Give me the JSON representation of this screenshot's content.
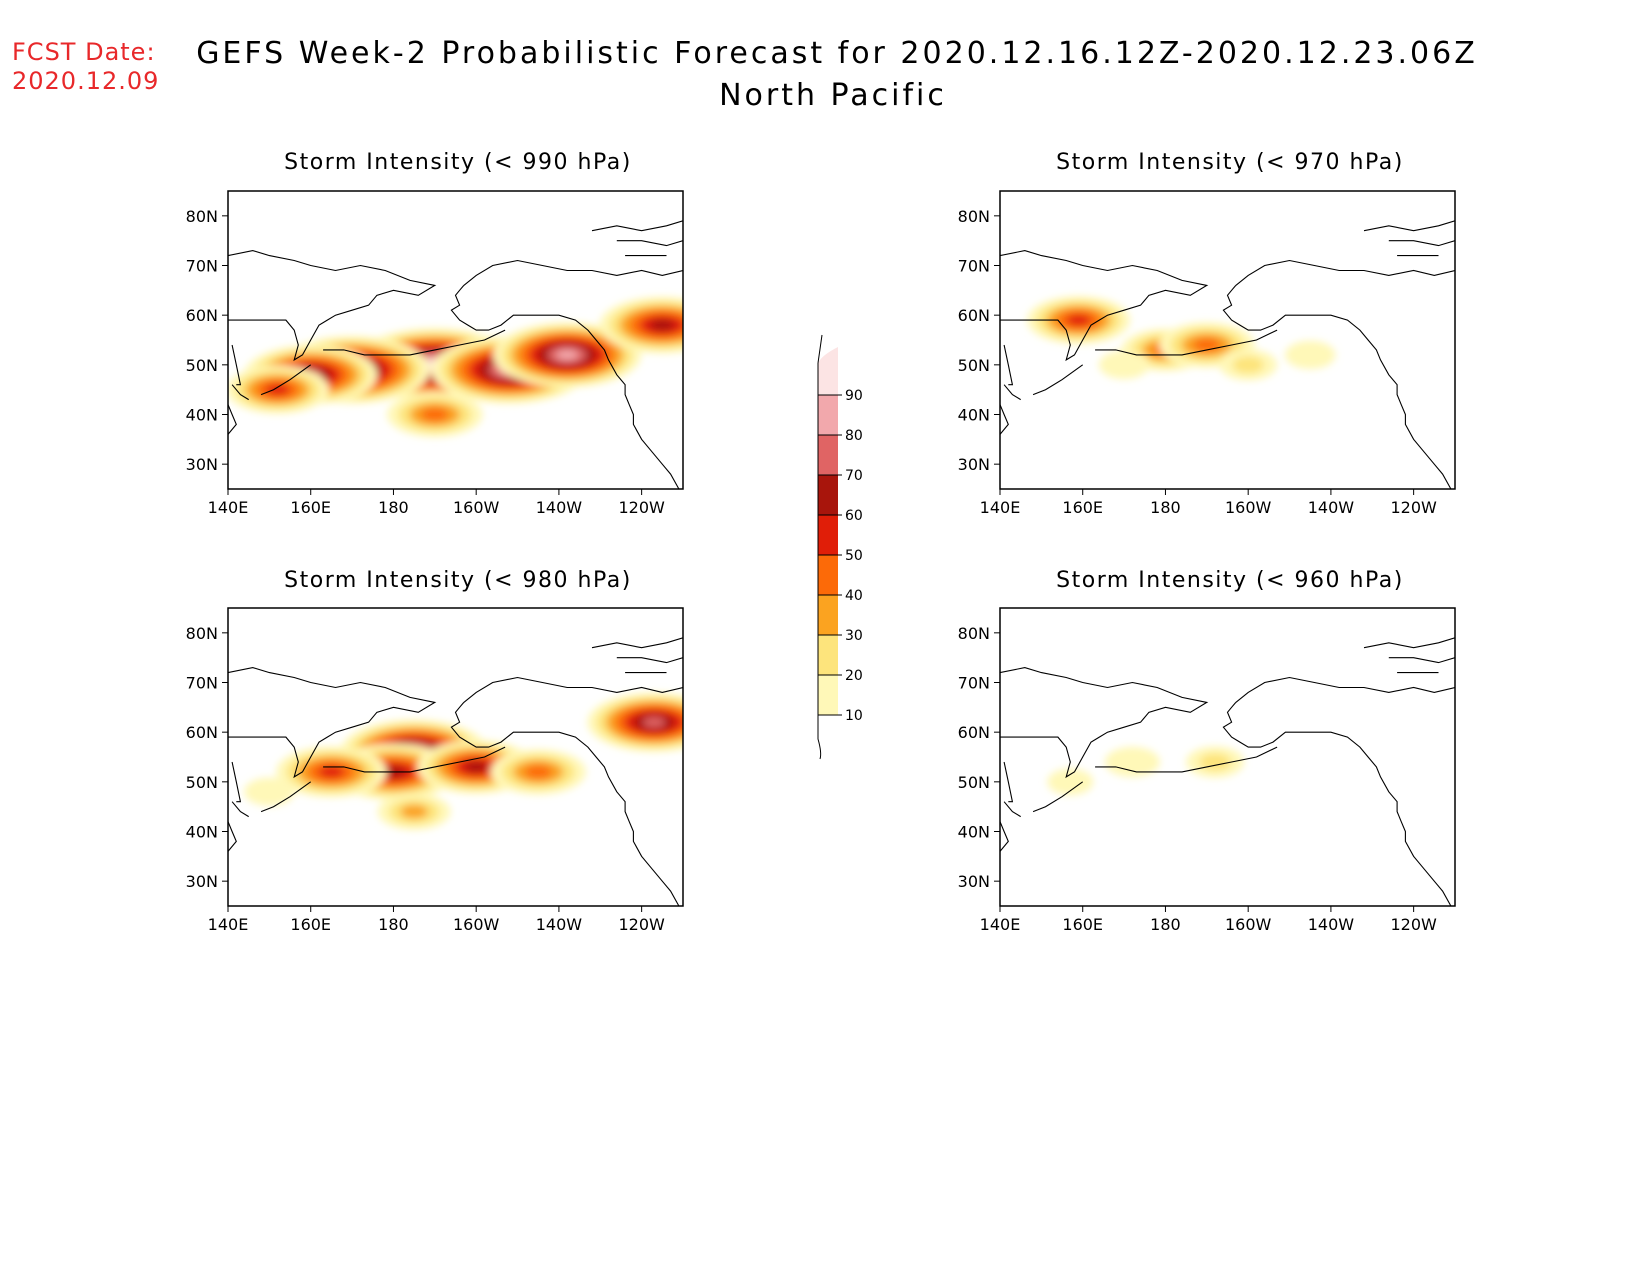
{
  "fcst_date": {
    "label": "FCST Date:",
    "value": "2020.12.09"
  },
  "title": "GEFS Week-2 Probabilistic Forecast for 2020.12.16.12Z-2020.12.23.06Z",
  "subtitle": "North Pacific",
  "axes": {
    "lon_ticks": [
      "140E",
      "160E",
      "180",
      "160W",
      "140W",
      "120W"
    ],
    "lat_ticks": [
      "80N",
      "70N",
      "60N",
      "50N",
      "40N",
      "30N"
    ]
  },
  "panels": [
    {
      "id": "p990",
      "title": "Storm Intensity (< 990 hPa)"
    },
    {
      "id": "p970",
      "title": "Storm Intensity (< 970 hPa)"
    },
    {
      "id": "p980",
      "title": "Storm Intensity (< 980 hPa)"
    },
    {
      "id": "p960",
      "title": "Storm Intensity (< 960 hPa)"
    }
  ],
  "colorbar": {
    "levels": [
      "10",
      "20",
      "30",
      "40",
      "50",
      "60",
      "70",
      "80",
      "90"
    ],
    "colors": [
      "#fff8b8",
      "#fde47c",
      "#fba320",
      "#fc6a08",
      "#e01e08",
      "#a8150c",
      "#e06464",
      "#f2a8ac",
      "#fce4e4"
    ]
  },
  "map_extent": {
    "lon": [
      "140E",
      "110W"
    ],
    "lat": [
      "25N",
      "85N"
    ]
  },
  "chart_data": [
    {
      "type": "heatmap",
      "title": "Storm Intensity (< 990 hPa)",
      "blobs": [
        {
          "lon": 190,
          "lat": 50,
          "value": 95
        },
        {
          "lon": 170,
          "lat": 49,
          "value": 85
        },
        {
          "lon": 208,
          "lat": 49,
          "value": 85
        },
        {
          "lon": 222,
          "lat": 52,
          "value": 80
        },
        {
          "lon": 160,
          "lat": 48,
          "value": 70
        },
        {
          "lon": 152,
          "lat": 45,
          "value": 50
        },
        {
          "lon": 190,
          "lat": 40,
          "value": 45
        },
        {
          "lon": 245,
          "lat": 58,
          "value": 65
        }
      ]
    },
    {
      "type": "heatmap",
      "title": "Storm Intensity (< 970 hPa)",
      "blobs": [
        {
          "lon": 180,
          "lat": 53,
          "value": 40
        },
        {
          "lon": 190,
          "lat": 54,
          "value": 45
        },
        {
          "lon": 200,
          "lat": 50,
          "value": 20
        },
        {
          "lon": 170,
          "lat": 50,
          "value": 15
        },
        {
          "lon": 215,
          "lat": 52,
          "value": 15
        },
        {
          "lon": 159,
          "lat": 59,
          "value": 50
        }
      ]
    },
    {
      "type": "heatmap",
      "title": "Storm Intensity (< 980 hPa)",
      "blobs": [
        {
          "lon": 185,
          "lat": 56,
          "value": 80
        },
        {
          "lon": 180,
          "lat": 52,
          "value": 65
        },
        {
          "lon": 200,
          "lat": 53,
          "value": 60
        },
        {
          "lon": 165,
          "lat": 52,
          "value": 55
        },
        {
          "lon": 215,
          "lat": 52,
          "value": 45
        },
        {
          "lon": 150,
          "lat": 48,
          "value": 15
        },
        {
          "lon": 185,
          "lat": 44,
          "value": 30
        },
        {
          "lon": 243,
          "lat": 62,
          "value": 70
        }
      ]
    },
    {
      "type": "heatmap",
      "title": "Storm Intensity (< 960 hPa)",
      "blobs": [
        {
          "lon": 172,
          "lat": 54,
          "value": 18
        },
        {
          "lon": 192,
          "lat": 54,
          "value": 20
        },
        {
          "lon": 157,
          "lat": 50,
          "value": 12
        }
      ]
    }
  ]
}
